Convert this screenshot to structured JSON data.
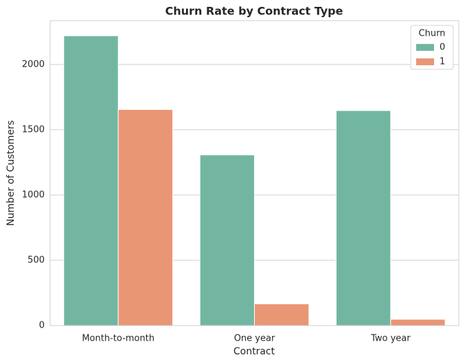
{
  "chart_data": {
    "type": "bar",
    "title": "Churn Rate by Contract Type",
    "x_label": "Contract",
    "y_label": "Number of Customers",
    "categories": [
      "Month-to-month",
      "One year",
      "Two year"
    ],
    "series": [
      {
        "name": "0",
        "color": "#72b6a1",
        "values": [
          2220,
          1307,
          1647
        ]
      },
      {
        "name": "1",
        "color": "#e99675",
        "values": [
          1655,
          166,
          48
        ]
      }
    ],
    "legend_title": "Churn",
    "legend_position": "upper right",
    "ylim": [
      0,
      2331
    ],
    "yticks": [
      0,
      500,
      1000,
      1500,
      2000
    ],
    "grid": true
  }
}
